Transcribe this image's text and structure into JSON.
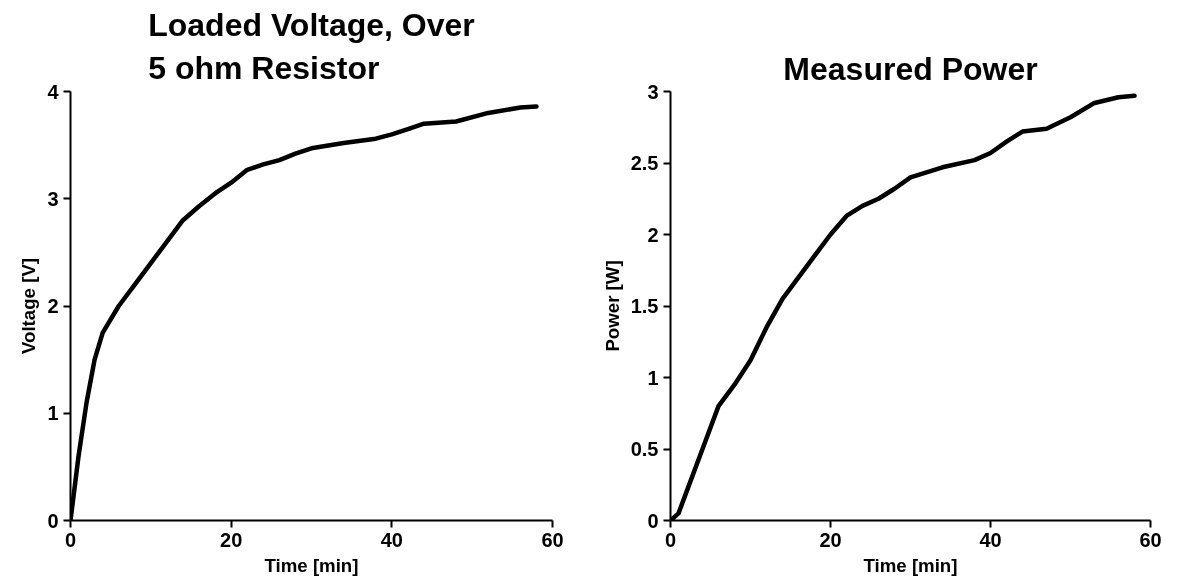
{
  "chart_data": [
    {
      "type": "line",
      "title": "Loaded Voltage, Over\n5 ohm Resistor",
      "xlabel": "Time [min]",
      "ylabel": "Voltage [V]",
      "x": [
        0,
        1,
        2,
        3,
        4,
        6,
        8,
        10,
        12,
        14,
        16,
        18,
        20,
        22,
        24,
        26,
        28,
        30,
        34,
        38,
        40,
        42,
        44,
        48,
        52,
        56,
        58
      ],
      "series": [
        {
          "color": "#000000",
          "values": [
            0,
            0.6,
            1.1,
            1.5,
            1.75,
            2.0,
            2.2,
            2.4,
            2.6,
            2.8,
            2.93,
            3.05,
            3.15,
            3.27,
            3.32,
            3.36,
            3.42,
            3.47,
            3.52,
            3.56,
            3.6,
            3.65,
            3.7,
            3.72,
            3.8,
            3.85,
            3.86
          ]
        }
      ],
      "xlim": [
        0,
        60
      ],
      "xticks": [
        0,
        20,
        40,
        60
      ],
      "ylim": [
        0,
        4
      ],
      "yticks": [
        0,
        1,
        2,
        3,
        4
      ],
      "grid": false
    },
    {
      "type": "line",
      "title": "Measured Power",
      "xlabel": "Time [min]",
      "ylabel": "Power [W]",
      "x": [
        0,
        1,
        2,
        4,
        6,
        8,
        10,
        12,
        14,
        16,
        18,
        20,
        22,
        24,
        26,
        28,
        30,
        34,
        38,
        40,
        42,
        44,
        47,
        50,
        53,
        56,
        58
      ],
      "series": [
        {
          "color": "#000000",
          "values": [
            0,
            0.05,
            0.2,
            0.5,
            0.8,
            0.95,
            1.12,
            1.35,
            1.55,
            1.7,
            1.85,
            2.0,
            2.13,
            2.2,
            2.25,
            2.32,
            2.4,
            2.47,
            2.52,
            2.57,
            2.65,
            2.72,
            2.74,
            2.82,
            2.92,
            2.96,
            2.97
          ]
        }
      ],
      "xlim": [
        0,
        60
      ],
      "xticks": [
        0,
        20,
        40,
        60
      ],
      "ylim": [
        0,
        3
      ],
      "yticks": [
        0,
        0.5,
        1,
        1.5,
        2,
        2.5,
        3
      ],
      "grid": false
    }
  ]
}
